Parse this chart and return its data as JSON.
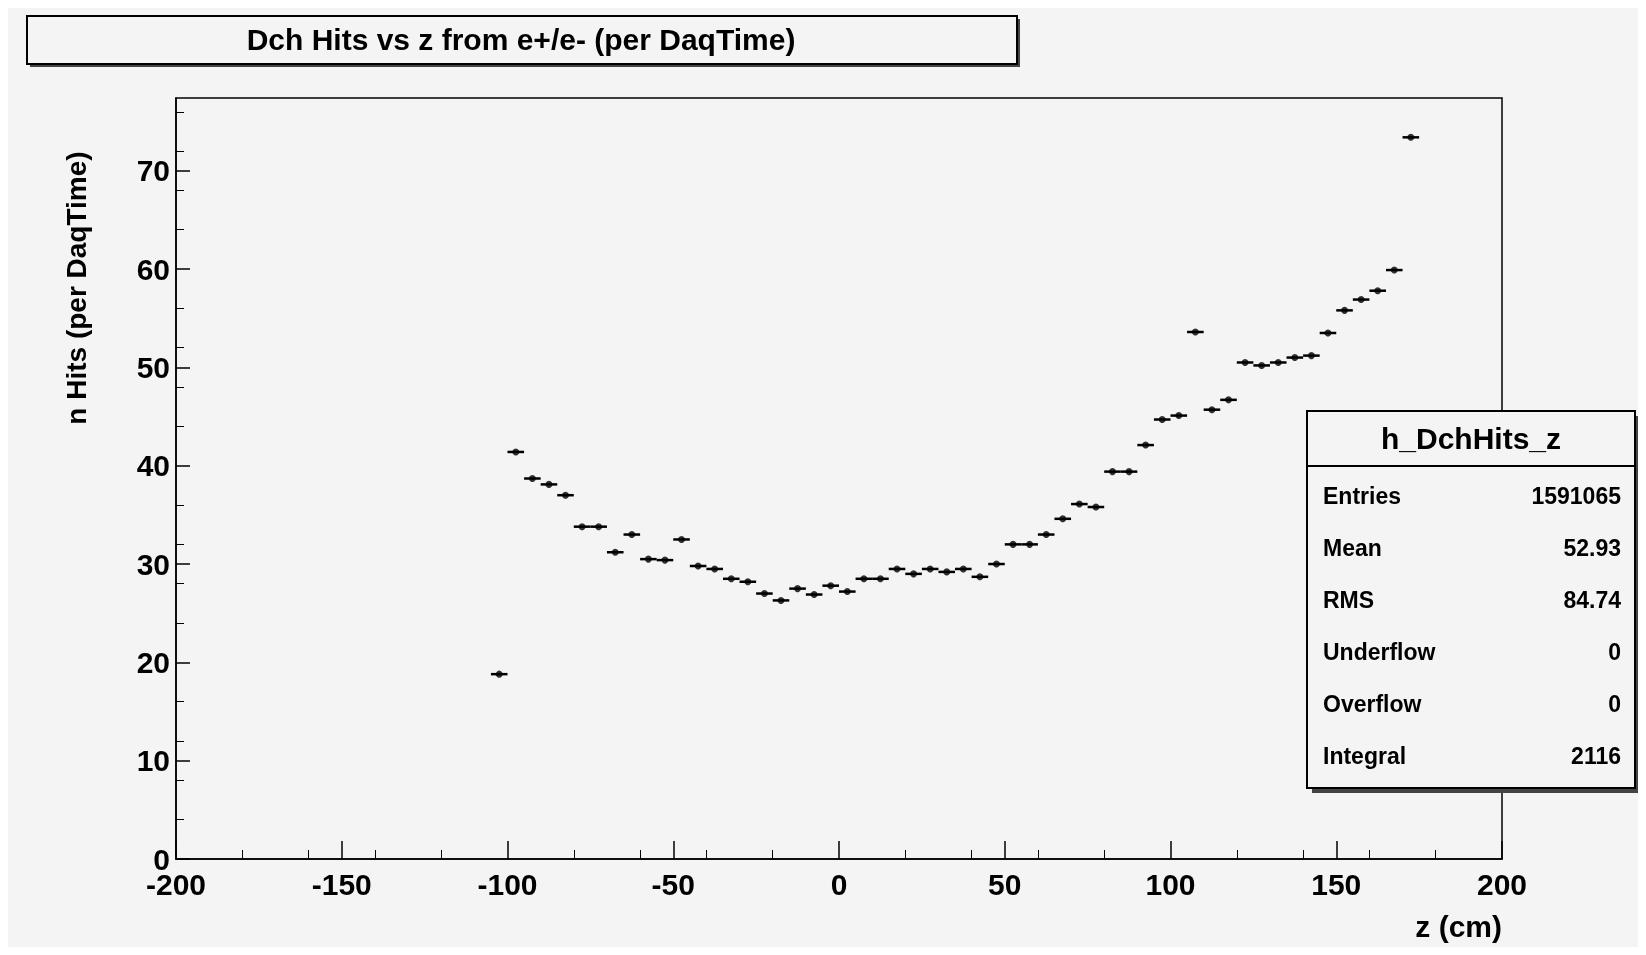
{
  "chart_data": {
    "type": "scatter",
    "title": "Dch Hits vs z from e+/e- (per DaqTime)",
    "xlabel": "z (cm)",
    "ylabel": "n Hits (per DaqTime)",
    "x": [
      -102.5,
      -97.5,
      -92.5,
      -87.5,
      -82.5,
      -77.5,
      -72.5,
      -67.5,
      -62.5,
      -57.5,
      -52.5,
      -47.5,
      -42.5,
      -37.5,
      -32.5,
      -27.5,
      -22.5,
      -17.5,
      -12.5,
      -7.5,
      -2.5,
      2.5,
      7.5,
      12.5,
      17.5,
      22.5,
      27.5,
      32.5,
      37.5,
      42.5,
      47.5,
      52.5,
      57.5,
      62.5,
      67.5,
      72.5,
      77.5,
      82.5,
      87.5,
      92.5,
      97.5,
      102.5,
      107.5,
      112.5,
      117.5,
      122.5,
      127.5,
      132.5,
      137.5,
      142.5,
      147.5,
      152.5,
      157.5,
      162.5,
      167.5,
      172.5
    ],
    "values": [
      18.8,
      41.4,
      38.7,
      38.1,
      37.0,
      33.8,
      33.8,
      31.2,
      33.0,
      30.5,
      30.4,
      32.5,
      29.8,
      29.5,
      28.5,
      28.2,
      27.0,
      26.3,
      27.5,
      26.9,
      27.8,
      27.2,
      28.5,
      28.5,
      29.5,
      29.0,
      29.5,
      29.2,
      29.5,
      28.7,
      30.0,
      32.0,
      32.0,
      33.0,
      34.6,
      36.1,
      35.8,
      39.4,
      39.4,
      42.1,
      44.7,
      45.1,
      53.6,
      45.7,
      46.7,
      50.5,
      50.2,
      50.5,
      51.0,
      51.2,
      53.5,
      55.8,
      56.9,
      57.8,
      59.9,
      73.4
    ],
    "xerrors": [
      2.5,
      2.5,
      2.5,
      2.5,
      2.5,
      2.5,
      2.5,
      2.5,
      2.5,
      2.5,
      2.5,
      2.5,
      2.5,
      2.5,
      2.5,
      2.5,
      2.5,
      2.5,
      2.5,
      2.5,
      2.5,
      2.5,
      2.5,
      2.5,
      2.5,
      2.5,
      2.5,
      2.5,
      2.5,
      2.5,
      2.5,
      2.5,
      2.5,
      2.5,
      2.5,
      2.5,
      2.5,
      2.5,
      2.5,
      2.5,
      2.5,
      2.5,
      2.5,
      2.5,
      2.5,
      2.5,
      2.5,
      2.5,
      2.5,
      2.5,
      2.5,
      2.5,
      2.5,
      2.5,
      2.5,
      2.5
    ],
    "color": "#000000",
    "marker": "circle",
    "xlim": [
      -200,
      200
    ],
    "xticks": [
      -200,
      -150,
      -100,
      -50,
      0,
      50,
      100,
      150,
      200
    ],
    "ylim": [
      0,
      77.4
    ],
    "yticks": [
      0,
      10,
      20,
      30,
      40,
      50,
      60,
      70
    ],
    "annotations": [
      "h_DchHits_z",
      "Entries",
      "1591065",
      "Mean",
      "52.93",
      "RMS",
      "84.74",
      "Underflow",
      "0",
      "Overflow",
      "0",
      "Integral",
      "2116"
    ]
  }
}
